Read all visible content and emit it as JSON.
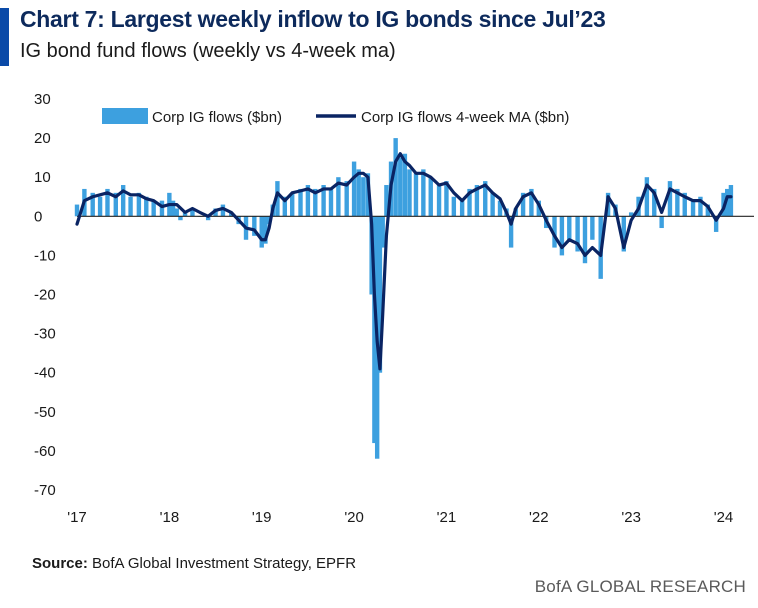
{
  "header": {
    "title": "Chart 7: Largest weekly inflow to IG bonds since Jul’23",
    "subtitle": "IG bond fund flows (weekly vs 4-week ma)"
  },
  "footer": {
    "source_label": "Source:",
    "source_text": "BofA Global Investment Strategy, EPFR",
    "brand": "BofA GLOBAL RESEARCH"
  },
  "colors": {
    "bars": "#3da0df",
    "line": "#0a2463",
    "accent": "#0a4aa8",
    "zero_line": "#222222"
  },
  "chart_data": {
    "type": "bar",
    "xlabel": "",
    "ylabel": "",
    "ylim": [
      -70,
      30
    ],
    "yticks": [
      30,
      20,
      10,
      0,
      -10,
      -20,
      -30,
      -40,
      -50,
      -60,
      -70
    ],
    "xlim": [
      2017.0,
      2024.2
    ],
    "xticks": [
      {
        "x": 2017,
        "label": "'17"
      },
      {
        "x": 2018,
        "label": "'18"
      },
      {
        "x": 2019,
        "label": "'19"
      },
      {
        "x": 2020,
        "label": "'20"
      },
      {
        "x": 2021,
        "label": "'21"
      },
      {
        "x": 2022,
        "label": "'22"
      },
      {
        "x": 2023,
        "label": "'23"
      },
      {
        "x": 2024,
        "label": "'24"
      }
    ],
    "grid": false,
    "legend": "top",
    "series": [
      {
        "name": "Corp IG flows ($bn)",
        "type": "bar",
        "points": [
          [
            2017.0,
            3
          ],
          [
            2017.08,
            7
          ],
          [
            2017.17,
            6
          ],
          [
            2017.25,
            5
          ],
          [
            2017.33,
            7
          ],
          [
            2017.42,
            6
          ],
          [
            2017.5,
            8
          ],
          [
            2017.58,
            5
          ],
          [
            2017.67,
            6
          ],
          [
            2017.75,
            5
          ],
          [
            2017.83,
            4
          ],
          [
            2017.92,
            4
          ],
          [
            2018.0,
            6
          ],
          [
            2018.04,
            4
          ],
          [
            2018.08,
            2
          ],
          [
            2018.12,
            -1
          ],
          [
            2018.17,
            1
          ],
          [
            2018.25,
            2
          ],
          [
            2018.33,
            0
          ],
          [
            2018.42,
            -1
          ],
          [
            2018.5,
            2
          ],
          [
            2018.58,
            3
          ],
          [
            2018.67,
            1
          ],
          [
            2018.75,
            -2
          ],
          [
            2018.83,
            -6
          ],
          [
            2018.92,
            -5
          ],
          [
            2019.0,
            -8
          ],
          [
            2019.04,
            -7
          ],
          [
            2019.08,
            -2
          ],
          [
            2019.12,
            3
          ],
          [
            2019.17,
            9
          ],
          [
            2019.25,
            5
          ],
          [
            2019.33,
            6
          ],
          [
            2019.42,
            7
          ],
          [
            2019.5,
            8
          ],
          [
            2019.58,
            7
          ],
          [
            2019.67,
            8
          ],
          [
            2019.75,
            7
          ],
          [
            2019.83,
            10
          ],
          [
            2019.92,
            9
          ],
          [
            2020.0,
            14
          ],
          [
            2020.05,
            12
          ],
          [
            2020.1,
            10
          ],
          [
            2020.15,
            11
          ],
          [
            2020.19,
            -20
          ],
          [
            2020.22,
            -58
          ],
          [
            2020.25,
            -62
          ],
          [
            2020.28,
            -40
          ],
          [
            2020.31,
            -8
          ],
          [
            2020.35,
            8
          ],
          [
            2020.4,
            14
          ],
          [
            2020.45,
            20
          ],
          [
            2020.5,
            15
          ],
          [
            2020.55,
            16
          ],
          [
            2020.6,
            12
          ],
          [
            2020.67,
            11
          ],
          [
            2020.75,
            12
          ],
          [
            2020.83,
            10
          ],
          [
            2020.92,
            8
          ],
          [
            2021.0,
            9
          ],
          [
            2021.08,
            5
          ],
          [
            2021.17,
            4
          ],
          [
            2021.25,
            7
          ],
          [
            2021.33,
            8
          ],
          [
            2021.42,
            9
          ],
          [
            2021.5,
            6
          ],
          [
            2021.58,
            4
          ],
          [
            2021.65,
            2
          ],
          [
            2021.7,
            -8
          ],
          [
            2021.75,
            2
          ],
          [
            2021.83,
            6
          ],
          [
            2021.92,
            7
          ],
          [
            2022.0,
            4
          ],
          [
            2022.08,
            -3
          ],
          [
            2022.17,
            -8
          ],
          [
            2022.25,
            -10
          ],
          [
            2022.33,
            -6
          ],
          [
            2022.42,
            -9
          ],
          [
            2022.5,
            -12
          ],
          [
            2022.58,
            -6
          ],
          [
            2022.67,
            -16
          ],
          [
            2022.75,
            6
          ],
          [
            2022.83,
            3
          ],
          [
            2022.92,
            -9
          ],
          [
            2023.0,
            1
          ],
          [
            2023.08,
            5
          ],
          [
            2023.17,
            10
          ],
          [
            2023.25,
            7
          ],
          [
            2023.33,
            -3
          ],
          [
            2023.42,
            9
          ],
          [
            2023.5,
            7
          ],
          [
            2023.58,
            6
          ],
          [
            2023.67,
            4
          ],
          [
            2023.75,
            5
          ],
          [
            2023.83,
            3
          ],
          [
            2023.92,
            -4
          ],
          [
            2024.0,
            6
          ],
          [
            2024.04,
            7
          ],
          [
            2024.08,
            8
          ]
        ]
      },
      {
        "name": "Corp IG flows 4-week MA ($bn)",
        "type": "line",
        "points": [
          [
            2017.0,
            -2
          ],
          [
            2017.08,
            4
          ],
          [
            2017.17,
            5
          ],
          [
            2017.25,
            5.5
          ],
          [
            2017.33,
            6
          ],
          [
            2017.42,
            5
          ],
          [
            2017.5,
            6.5
          ],
          [
            2017.58,
            5.5
          ],
          [
            2017.67,
            5.5
          ],
          [
            2017.75,
            4.5
          ],
          [
            2017.83,
            4
          ],
          [
            2017.92,
            2.5
          ],
          [
            2018.0,
            3
          ],
          [
            2018.08,
            3
          ],
          [
            2018.17,
            1
          ],
          [
            2018.25,
            2
          ],
          [
            2018.33,
            1
          ],
          [
            2018.42,
            0
          ],
          [
            2018.5,
            1.5
          ],
          [
            2018.58,
            2
          ],
          [
            2018.67,
            1
          ],
          [
            2018.75,
            -1
          ],
          [
            2018.83,
            -3
          ],
          [
            2018.92,
            -3.5
          ],
          [
            2019.0,
            -6
          ],
          [
            2019.04,
            -6
          ],
          [
            2019.08,
            -3
          ],
          [
            2019.12,
            2
          ],
          [
            2019.17,
            6
          ],
          [
            2019.25,
            4
          ],
          [
            2019.33,
            6
          ],
          [
            2019.42,
            6.5
          ],
          [
            2019.5,
            7
          ],
          [
            2019.58,
            6
          ],
          [
            2019.67,
            7
          ],
          [
            2019.75,
            7
          ],
          [
            2019.83,
            8.5
          ],
          [
            2019.92,
            8
          ],
          [
            2020.0,
            10
          ],
          [
            2020.05,
            11
          ],
          [
            2020.1,
            11
          ],
          [
            2020.15,
            10
          ],
          [
            2020.19,
            -2
          ],
          [
            2020.22,
            -20
          ],
          [
            2020.25,
            -32
          ],
          [
            2020.28,
            -39
          ],
          [
            2020.31,
            -25
          ],
          [
            2020.35,
            -5
          ],
          [
            2020.4,
            8
          ],
          [
            2020.45,
            14
          ],
          [
            2020.5,
            16
          ],
          [
            2020.55,
            14
          ],
          [
            2020.6,
            13
          ],
          [
            2020.67,
            11
          ],
          [
            2020.75,
            11
          ],
          [
            2020.83,
            10
          ],
          [
            2020.92,
            8
          ],
          [
            2021.0,
            8.5
          ],
          [
            2021.08,
            6
          ],
          [
            2021.17,
            4
          ],
          [
            2021.25,
            6
          ],
          [
            2021.33,
            7
          ],
          [
            2021.42,
            8
          ],
          [
            2021.5,
            6
          ],
          [
            2021.58,
            4.5
          ],
          [
            2021.65,
            1
          ],
          [
            2021.7,
            -2
          ],
          [
            2021.75,
            2
          ],
          [
            2021.83,
            5
          ],
          [
            2021.92,
            6
          ],
          [
            2022.0,
            3
          ],
          [
            2022.08,
            -1
          ],
          [
            2022.17,
            -5
          ],
          [
            2022.25,
            -8
          ],
          [
            2022.33,
            -6
          ],
          [
            2022.42,
            -7
          ],
          [
            2022.5,
            -10
          ],
          [
            2022.58,
            -8
          ],
          [
            2022.67,
            -10
          ],
          [
            2022.75,
            5
          ],
          [
            2022.83,
            2
          ],
          [
            2022.92,
            -8
          ],
          [
            2023.0,
            -1
          ],
          [
            2023.08,
            2
          ],
          [
            2023.17,
            8
          ],
          [
            2023.25,
            6
          ],
          [
            2023.33,
            1
          ],
          [
            2023.42,
            7
          ],
          [
            2023.5,
            6
          ],
          [
            2023.58,
            5
          ],
          [
            2023.67,
            4
          ],
          [
            2023.75,
            4
          ],
          [
            2023.83,
            2.5
          ],
          [
            2023.92,
            -1
          ],
          [
            2024.0,
            2
          ],
          [
            2024.04,
            5
          ],
          [
            2024.08,
            5
          ]
        ]
      }
    ]
  }
}
